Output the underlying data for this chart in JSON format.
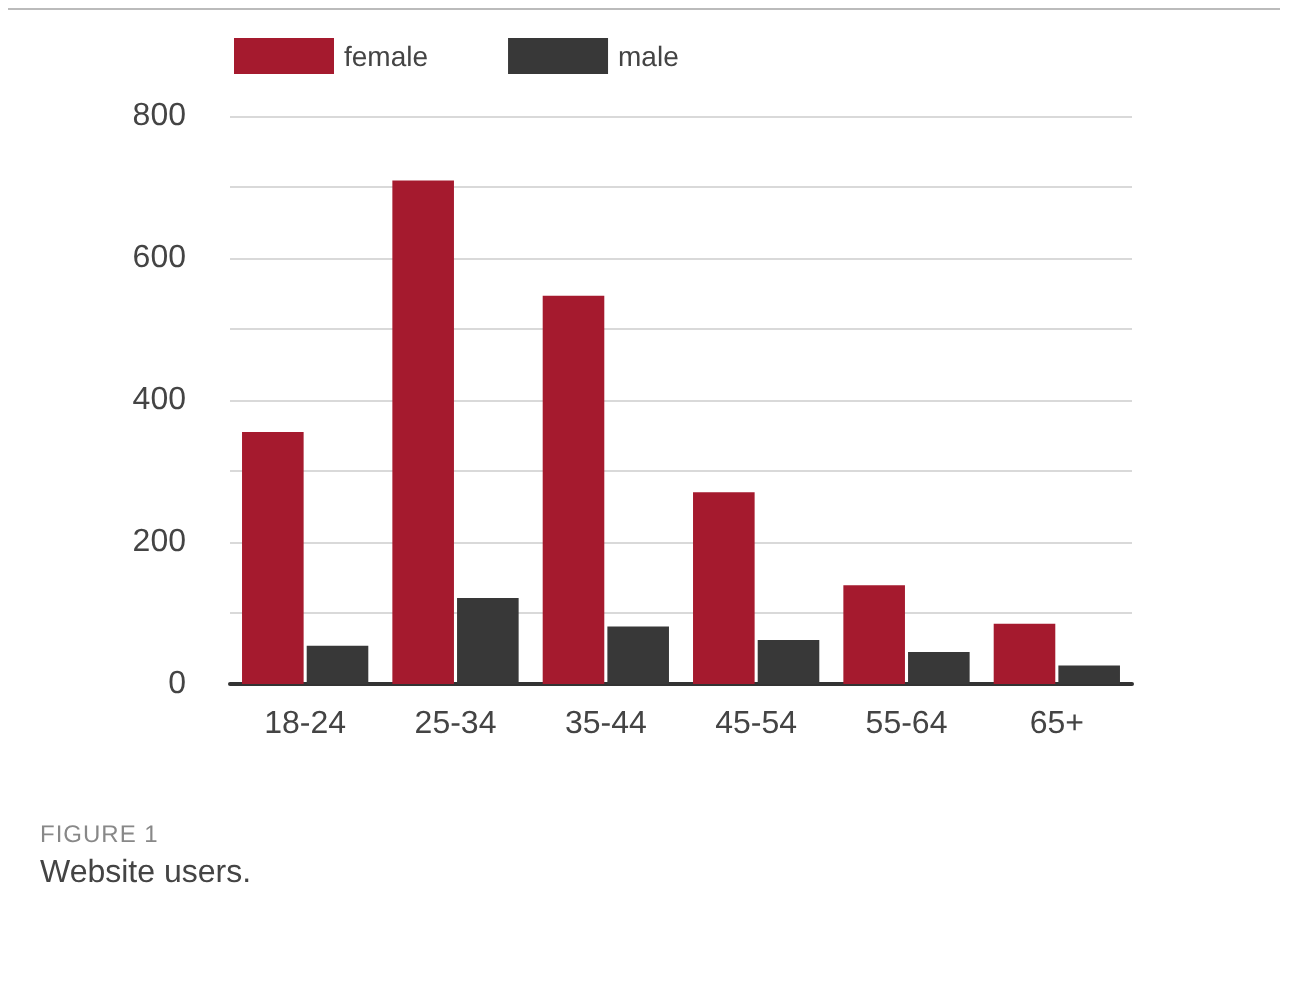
{
  "chart_data": {
    "type": "bar",
    "categories": [
      "18-24",
      "25-34",
      "35-44",
      "45-54",
      "55-64",
      "65+"
    ],
    "series": [
      {
        "name": "female",
        "color": "#a51a2e",
        "values": [
          355,
          709,
          547,
          270,
          139,
          85
        ]
      },
      {
        "name": "male",
        "color": "#383838",
        "values": [
          54,
          121,
          81,
          62,
          45,
          26
        ]
      }
    ],
    "ylim": [
      0,
      800
    ],
    "yticks": [
      0,
      {
        "value": 100,
        "label": null
      },
      200,
      {
        "value": 300,
        "label": null
      },
      400,
      {
        "value": 500,
        "label": null
      },
      600,
      {
        "value": 700,
        "label": null
      },
      800
    ],
    "grid": "y",
    "legend": "top left",
    "annotations": [
      "FIGURE 1",
      "Website users."
    ]
  }
}
